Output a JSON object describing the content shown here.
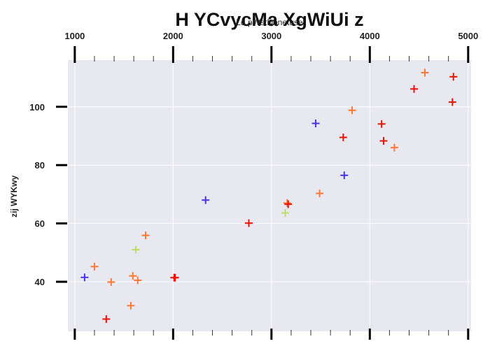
{
  "chart_data": {
    "type": "scatter",
    "title": "H YCvycMa XgWiUi z",
    "xlabel": "Ld pWstDonetuse",
    "ylabel": "zij WYKwy",
    "xlim": [
      930,
      5030
    ],
    "ylim": [
      23,
      116
    ],
    "x_axis_position": "top",
    "x_ticks": [
      1000,
      2000,
      3000,
      4000,
      5000
    ],
    "y_ticks": [
      40,
      60,
      80,
      100
    ],
    "grid": true,
    "legend": "none",
    "marker": "plus",
    "colors": {
      "background": "#e8e8f0",
      "grid": "#ffffff",
      "text": "#222222"
    },
    "points": [
      {
        "x": 1100,
        "y": 41.5,
        "color": "#4433ee"
      },
      {
        "x": 1200,
        "y": 45.2,
        "color": "#ff7733"
      },
      {
        "x": 1320,
        "y": 27.2,
        "color": "#ee1100"
      },
      {
        "x": 1370,
        "y": 39.9,
        "color": "#ff7733"
      },
      {
        "x": 1570,
        "y": 31.8,
        "color": "#ff7733"
      },
      {
        "x": 1590,
        "y": 42.0,
        "color": "#ff7733"
      },
      {
        "x": 1620,
        "y": 51.0,
        "color": "#bbdd66"
      },
      {
        "x": 1640,
        "y": 40.5,
        "color": "#ff7733"
      },
      {
        "x": 1720,
        "y": 55.9,
        "color": "#ff7733"
      },
      {
        "x": 2010,
        "y": 41.4,
        "color": "#ee1100"
      },
      {
        "x": 2020,
        "y": 41.4,
        "color": "#ee1100"
      },
      {
        "x": 2330,
        "y": 68.0,
        "color": "#4433ee"
      },
      {
        "x": 2770,
        "y": 60.1,
        "color": "#ee1100"
      },
      {
        "x": 3140,
        "y": 63.6,
        "color": "#bbdd66"
      },
      {
        "x": 3160,
        "y": 67.0,
        "color": "#ff7733"
      },
      {
        "x": 3170,
        "y": 66.6,
        "color": "#ee1100"
      },
      {
        "x": 3450,
        "y": 94.3,
        "color": "#4433ee"
      },
      {
        "x": 3490,
        "y": 70.3,
        "color": "#ff7733"
      },
      {
        "x": 3730,
        "y": 89.5,
        "color": "#ee1100"
      },
      {
        "x": 3740,
        "y": 76.5,
        "color": "#4433ee"
      },
      {
        "x": 3820,
        "y": 98.8,
        "color": "#ff7733"
      },
      {
        "x": 4120,
        "y": 94.1,
        "color": "#ee1100"
      },
      {
        "x": 4140,
        "y": 88.3,
        "color": "#ee1100"
      },
      {
        "x": 4250,
        "y": 86.0,
        "color": "#ff7733"
      },
      {
        "x": 4450,
        "y": 106.1,
        "color": "#ee1100"
      },
      {
        "x": 4560,
        "y": 111.7,
        "color": "#ff7733"
      },
      {
        "x": 4840,
        "y": 101.6,
        "color": "#ee1100"
      },
      {
        "x": 4850,
        "y": 110.3,
        "color": "#ee1100"
      }
    ]
  }
}
